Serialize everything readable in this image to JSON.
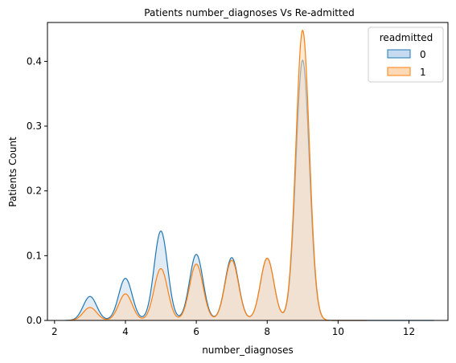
{
  "chart_data": {
    "type": "area",
    "title": "Patients number_diagnoses Vs Re-admitted",
    "xlabel": "number_diagnoses",
    "ylabel": "Patients Count",
    "xlim": [
      1.8,
      13.1
    ],
    "ylim": [
      0,
      0.46
    ],
    "xticks": [
      2,
      4,
      6,
      8,
      10,
      12
    ],
    "yticks": [
      0.0,
      0.1,
      0.2,
      0.3,
      0.4
    ],
    "grid": false,
    "legend": {
      "title": "readmitted",
      "placement": "top-right"
    },
    "series": [
      {
        "name": "0",
        "line_color": "#1f77b4",
        "fill_color": "#c6dbef",
        "support": [
          2.3,
          12.7
        ],
        "peaks": [
          {
            "x": 3,
            "y": 0.037
          },
          {
            "x": 4,
            "y": 0.065
          },
          {
            "x": 5,
            "y": 0.138
          },
          {
            "x": 6,
            "y": 0.102
          },
          {
            "x": 7,
            "y": 0.097
          },
          {
            "x": 8,
            "y": 0.096
          },
          {
            "x": 9,
            "y": 0.402
          }
        ]
      },
      {
        "name": "1",
        "line_color": "#ff7f0e",
        "fill_color": "#fdd9b5",
        "support": [
          2.4,
          10.8
        ],
        "peaks": [
          {
            "x": 3,
            "y": 0.02
          },
          {
            "x": 4,
            "y": 0.041
          },
          {
            "x": 5,
            "y": 0.08
          },
          {
            "x": 6,
            "y": 0.087
          },
          {
            "x": 7,
            "y": 0.093
          },
          {
            "x": 8,
            "y": 0.096
          },
          {
            "x": 9,
            "y": 0.448
          }
        ]
      }
    ]
  }
}
